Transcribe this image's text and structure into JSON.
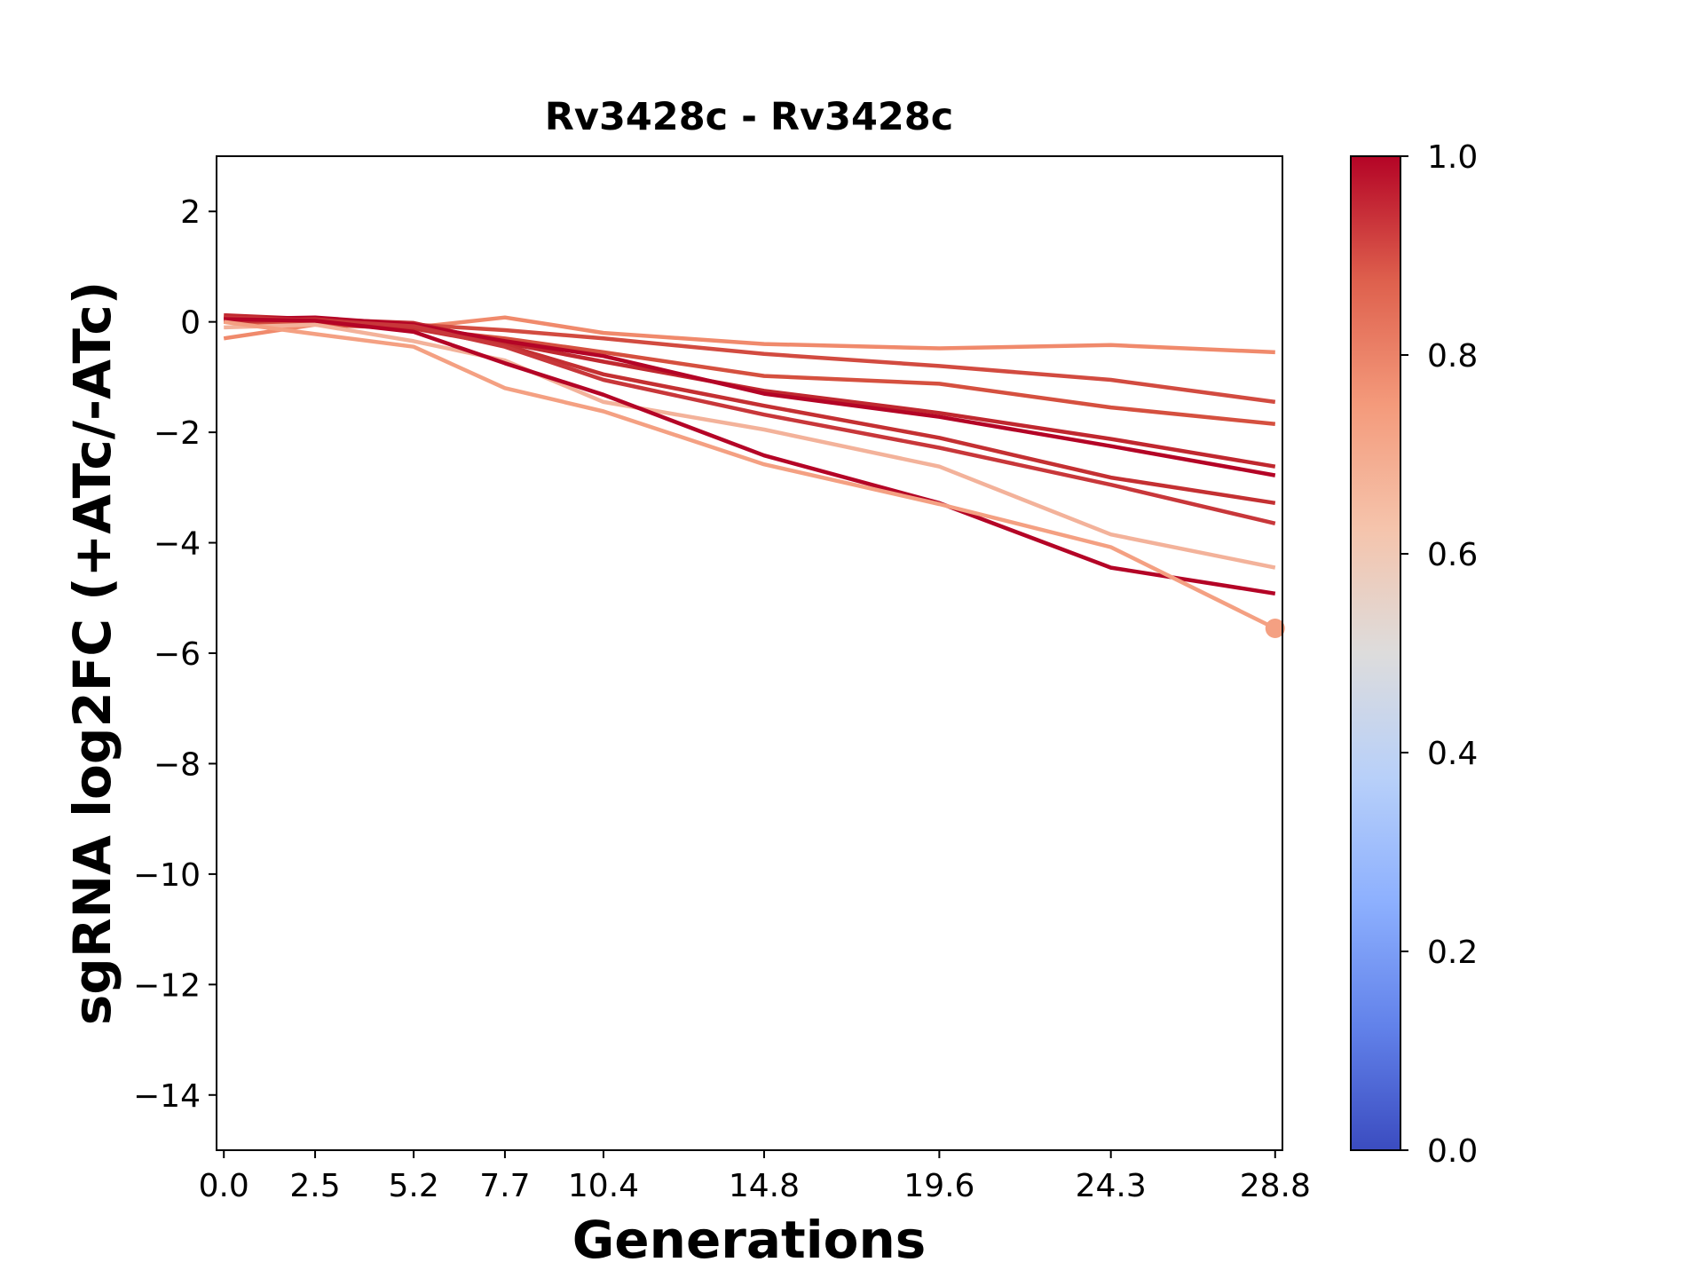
{
  "chart_data": {
    "type": "line",
    "title": "Rv3428c - Rv3428c",
    "xlabel": "Generations",
    "ylabel": "sgRNA log2FC (+ATc/-ATc)",
    "x": [
      0.0,
      2.5,
      5.2,
      7.7,
      10.4,
      14.8,
      19.6,
      24.3,
      28.8
    ],
    "x_tick_labels": [
      "0.0",
      "2.5",
      "5.2",
      "7.7",
      "10.4",
      "14.8",
      "19.6",
      "24.3",
      "28.8"
    ],
    "xlim": [
      -0.2,
      29.0
    ],
    "ylim": [
      -15,
      3
    ],
    "y_ticks": [
      2,
      0,
      -2,
      -4,
      -6,
      -8,
      -10,
      -12,
      -14
    ],
    "y_tick_labels": [
      "2",
      "0",
      "−2",
      "−4",
      "−6",
      "−8",
      "−10",
      "−12",
      "−14"
    ],
    "grid": false,
    "colorbar": {
      "colormap": "coolwarm",
      "range": [
        0.0,
        1.0
      ],
      "ticks": [
        "0.0",
        "0.2",
        "0.4",
        "0.6",
        "0.8",
        "1.0"
      ],
      "stops": [
        "#3b4cc0",
        "#6282ea",
        "#8db0fe",
        "#b8d0f9",
        "#dddcdc",
        "#f5c4ac",
        "#f49a7b",
        "#de604d",
        "#b40426"
      ]
    },
    "series": [
      {
        "color": "#f08a6c",
        "values": [
          -0.3,
          -0.05,
          -0.1,
          0.08,
          -0.2,
          -0.4,
          -0.48,
          -0.42,
          -0.55
        ]
      },
      {
        "color": "#d24b40",
        "values": [
          0.05,
          -0.02,
          -0.05,
          -0.15,
          -0.3,
          -0.58,
          -0.8,
          -1.05,
          -1.45
        ]
      },
      {
        "color": "#d5503f",
        "values": [
          0.0,
          -0.05,
          -0.12,
          -0.3,
          -0.55,
          -0.98,
          -1.12,
          -1.55,
          -1.85
        ]
      },
      {
        "color": "#c0282f",
        "values": [
          0.12,
          0.05,
          -0.02,
          -0.38,
          -0.72,
          -1.25,
          -1.65,
          -2.12,
          -2.62
        ]
      },
      {
        "color": "#b40426",
        "values": [
          0.05,
          0.08,
          -0.05,
          -0.35,
          -0.62,
          -1.3,
          -1.72,
          -2.25,
          -2.78
        ]
      },
      {
        "color": "#c43032",
        "values": [
          0.0,
          0.05,
          -0.12,
          -0.42,
          -0.95,
          -1.52,
          -2.1,
          -2.82,
          -3.28
        ]
      },
      {
        "color": "#c8373a",
        "values": [
          0.08,
          0.03,
          -0.08,
          -0.45,
          -1.05,
          -1.68,
          -2.28,
          -2.95,
          -3.65
        ]
      },
      {
        "color": "#f3b29a",
        "values": [
          -0.1,
          -0.05,
          -0.35,
          -0.7,
          -1.45,
          -1.95,
          -2.62,
          -3.85,
          -4.45
        ]
      },
      {
        "color": "#b40426",
        "values": [
          0.05,
          0.02,
          -0.18,
          -0.75,
          -1.32,
          -2.42,
          -3.28,
          -4.45,
          -4.92
        ]
      },
      {
        "color": "#f4a082",
        "values": [
          0.0,
          -0.22,
          -0.45,
          -1.2,
          -1.62,
          -2.58,
          -3.3,
          -4.08,
          -5.55
        ],
        "end_marker": true
      }
    ]
  }
}
